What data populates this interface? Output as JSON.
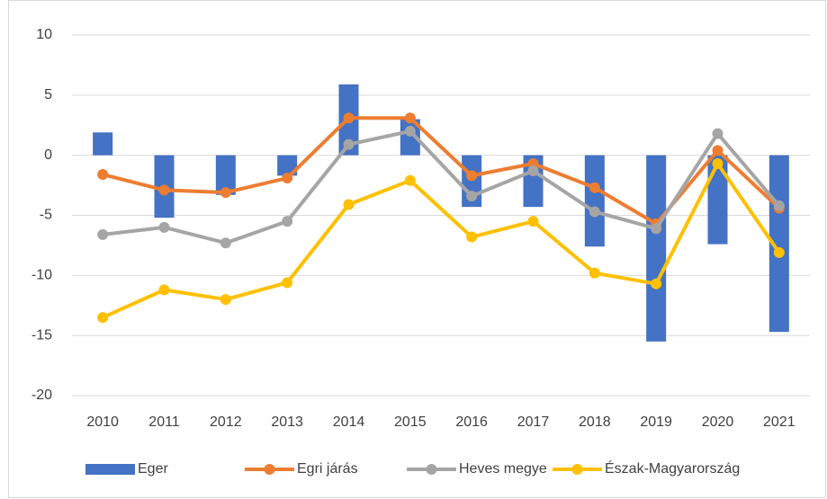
{
  "chart_data": {
    "type": "bar_line",
    "categories": [
      "2010",
      "2011",
      "2012",
      "2013",
      "2014",
      "2015",
      "2016",
      "2017",
      "2018",
      "2019",
      "2020",
      "2021"
    ],
    "series": [
      {
        "name": "Eger",
        "type": "bar",
        "color": "#4472c4",
        "values": [
          1.9,
          -5.2,
          -3.3,
          -1.7,
          5.9,
          3.0,
          -4.3,
          -4.3,
          -7.6,
          -15.5,
          -7.4,
          -14.7
        ]
      },
      {
        "name": "Egri járás",
        "type": "line",
        "color": "#ed7d31",
        "values": [
          -1.6,
          -2.9,
          -3.1,
          -1.9,
          3.1,
          3.1,
          -1.7,
          -0.7,
          -2.7,
          -5.7,
          0.4,
          -4.4
        ]
      },
      {
        "name": "Heves megye",
        "type": "line",
        "color": "#a5a5a5",
        "values": [
          -6.6,
          -6.0,
          -7.3,
          -5.5,
          0.9,
          2.0,
          -3.4,
          -1.3,
          -4.7,
          -6.1,
          1.8,
          -4.2
        ]
      },
      {
        "name": "Észak-Magyarország",
        "type": "line",
        "color": "#ffc000",
        "values": [
          -13.5,
          -11.2,
          -12.0,
          -10.6,
          -4.1,
          -2.1,
          -6.8,
          -5.5,
          -9.8,
          -10.7,
          -0.7,
          -8.1
        ]
      }
    ],
    "ylim": [
      -20,
      10
    ],
    "yticks": [
      -20,
      -15,
      -10,
      -5,
      0,
      5,
      10
    ],
    "grid": true,
    "legend": "bottom"
  }
}
